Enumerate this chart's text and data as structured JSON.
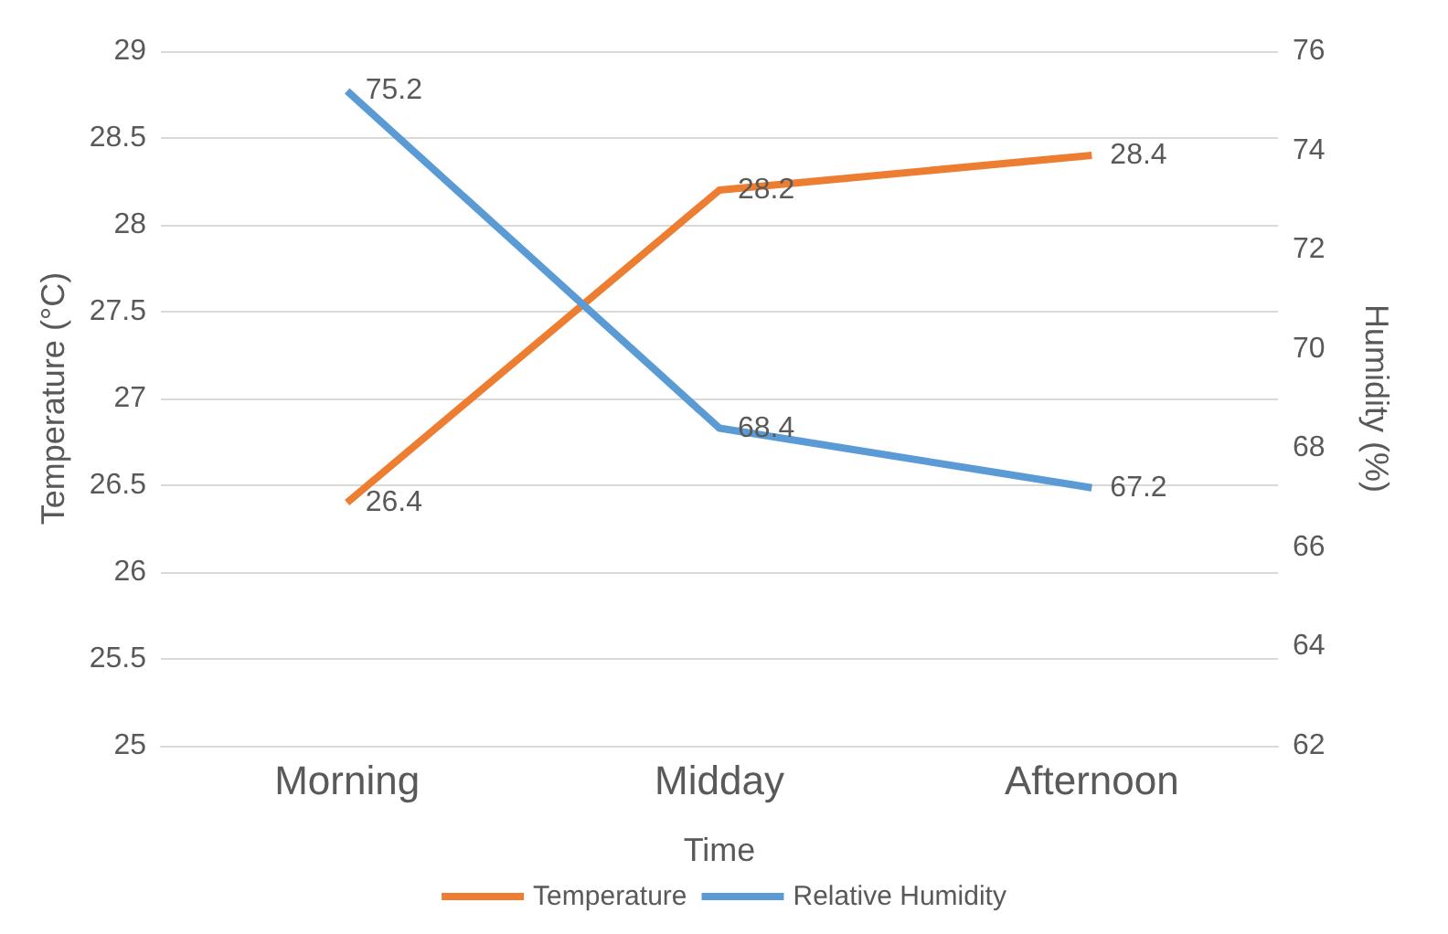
{
  "chart_data": {
    "type": "line",
    "xlabel": "Time",
    "ylabel": "Temperature (°C)",
    "y2label": "Humidity (%)",
    "categories": [
      "Morning",
      "Midday",
      "Afternoon"
    ],
    "series": [
      {
        "name": "Temperature",
        "color": "#ed7d31",
        "values": [
          26.4,
          28.2,
          28.4
        ]
      },
      {
        "name": "Relative Humidity",
        "color": "#5b9bd5",
        "values": [
          75.2,
          68.4,
          67.2
        ],
        "axis": "y2"
      }
    ],
    "ylim": [
      25,
      29
    ],
    "yticks": [
      25,
      25.5,
      26,
      26.5,
      27,
      27.5,
      28,
      28.5,
      29
    ],
    "y2lim": [
      62,
      76
    ],
    "y2ticks": [
      62,
      64,
      66,
      68,
      70,
      72,
      74,
      76
    ],
    "grid": "y",
    "legend": "bottom",
    "data_labels": true,
    "marker": "none",
    "line_style": "solid"
  }
}
